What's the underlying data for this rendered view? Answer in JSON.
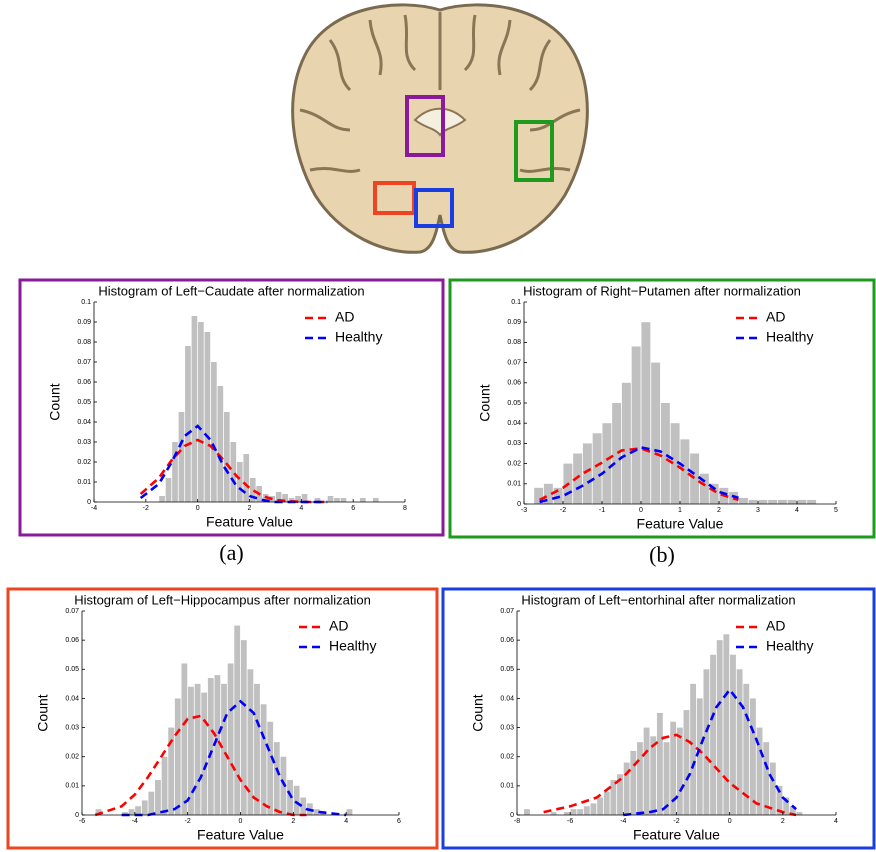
{
  "chart_data": [
    {
      "type": "histogram",
      "title": "Histogram of Left−Caudate after normalization",
      "xlabel": "Feature Value",
      "ylabel": "Count",
      "panel_label": "(a)",
      "frame_color": "#8b1a9a",
      "color": "#c0c0c0",
      "bins": [
        -2.0,
        -1.75,
        -1.5,
        -1.25,
        -1.0,
        -0.75,
        -0.5,
        -0.25,
        0.0,
        0.25,
        0.5,
        0.75,
        1.0,
        1.25,
        1.5,
        1.75,
        2.0,
        2.25,
        2.5,
        2.75,
        3.0,
        3.25,
        3.5,
        3.75,
        4.0,
        4.25,
        4.5,
        4.75,
        5.0,
        5.25,
        5.5,
        5.75,
        6.0,
        6.25,
        6.5,
        6.75,
        7.0
      ],
      "counts": [
        0,
        0,
        0.003,
        0.012,
        0.03,
        0.045,
        0.078,
        0.093,
        0.09,
        0.085,
        0.07,
        0.058,
        0.045,
        0.03,
        0.02,
        0.024,
        0.012,
        0.008,
        0.004,
        0.003,
        0.005,
        0.004,
        0.002,
        0.003,
        0.004,
        0,
        0.002,
        0,
        0.003,
        0.002,
        0.002,
        0,
        0,
        0.002,
        0,
        0.002
      ],
      "series": [
        {
          "name": "AD",
          "color": "#ff0000",
          "x": [
            -2.2,
            -1.5,
            -1,
            -0.5,
            0,
            0.5,
            1,
            1.5,
            2,
            2.5,
            3,
            4,
            5
          ],
          "values": [
            0.004,
            0.012,
            0.021,
            0.028,
            0.031,
            0.028,
            0.021,
            0.013,
            0.007,
            0.003,
            0.001,
            0,
            0
          ]
        },
        {
          "name": "Healthy",
          "color": "#0000ff",
          "x": [
            -2.2,
            -1.5,
            -1,
            -0.5,
            0,
            0.5,
            1,
            1.5,
            2,
            2.5,
            3,
            4,
            5
          ],
          "values": [
            0.002,
            0.009,
            0.02,
            0.033,
            0.038,
            0.031,
            0.018,
            0.008,
            0.003,
            0.001,
            0,
            0,
            0
          ]
        }
      ],
      "xlim": [
        -4,
        8
      ],
      "xticks": [
        -4,
        -2,
        0,
        2,
        4,
        6,
        8
      ],
      "ylim": [
        0,
        0.1
      ],
      "yticks": [
        0,
        0.01,
        0.02,
        0.03,
        0.04,
        0.05,
        0.06,
        0.07,
        0.08,
        0.09,
        0.1
      ],
      "legend": "upper right"
    },
    {
      "type": "histogram",
      "title": "Histogram of Right−Putamen after normalization",
      "xlabel": "Feature Value",
      "ylabel": "Count",
      "panel_label": "(b)",
      "frame_color": "#1e9a1e",
      "color": "#c0c0c0",
      "bins": [
        -2.75,
        -2.5,
        -2.25,
        -2.0,
        -1.75,
        -1.5,
        -1.25,
        -1.0,
        -0.75,
        -0.5,
        -0.25,
        0,
        0.25,
        0.5,
        0.75,
        1.0,
        1.25,
        1.5,
        1.75,
        2.0,
        2.25,
        2.5,
        2.75,
        3.0,
        3.25,
        3.5,
        3.75,
        4.0,
        4.25,
        4.5
      ],
      "counts": [
        0.008,
        0.01,
        0.008,
        0.02,
        0.025,
        0.03,
        0.035,
        0.04,
        0.05,
        0.06,
        0.078,
        0.09,
        0.07,
        0.05,
        0.04,
        0.032,
        0.025,
        0.015,
        0.01,
        0.008,
        0.006,
        0.003,
        0.002,
        0.002,
        0.002,
        0.002,
        0.002,
        0.002,
        0.002
      ],
      "series": [
        {
          "name": "AD",
          "color": "#ff0000",
          "x": [
            -2.6,
            -2,
            -1.5,
            -1,
            -0.5,
            0,
            0.5,
            1,
            1.5,
            2,
            2.5
          ],
          "values": [
            0.002,
            0.008,
            0.015,
            0.0205,
            0.0265,
            0.0275,
            0.024,
            0.018,
            0.011,
            0.005,
            0.002
          ]
        },
        {
          "name": "Healthy",
          "color": "#0000ff",
          "x": [
            -2.6,
            -2,
            -1.5,
            -1,
            -0.5,
            0,
            0.5,
            1,
            1.5,
            2,
            2.5
          ],
          "values": [
            0.001,
            0.004,
            0.009,
            0.015,
            0.023,
            0.028,
            0.026,
            0.02,
            0.013,
            0.006,
            0.003
          ]
        }
      ],
      "xlim": [
        -3,
        5
      ],
      "xticks": [
        -3,
        -2,
        -1,
        0,
        1,
        2,
        3,
        4,
        5
      ],
      "ylim": [
        0,
        0.1
      ],
      "yticks": [
        0,
        0.01,
        0.02,
        0.03,
        0.04,
        0.05,
        0.06,
        0.07,
        0.08,
        0.09,
        0.1
      ],
      "legend": "upper right"
    },
    {
      "type": "histogram",
      "title": "Histogram of Left−Hippocampus after normalization",
      "xlabel": "Feature Value",
      "ylabel": "Count",
      "frame_color": "#ee4422",
      "color": "#c0c0c0",
      "bins": [
        -5.5,
        -5.25,
        -5.0,
        -4.75,
        -4.5,
        -4.25,
        -4.0,
        -3.75,
        -3.5,
        -3.25,
        -3.0,
        -2.75,
        -2.5,
        -2.25,
        -2.0,
        -1.75,
        -1.5,
        -1.25,
        -1.0,
        -0.75,
        -0.5,
        -0.25,
        0.0,
        0.25,
        0.5,
        0.75,
        1.0,
        1.25,
        1.5,
        1.75,
        2.0,
        2.25,
        2.5,
        2.75,
        3.0,
        3.25,
        3.5,
        3.75,
        4.0,
        4.25
      ],
      "counts": [
        0.002,
        0,
        0,
        0,
        0.001,
        0.002,
        0.003,
        0.005,
        0.008,
        0.012,
        0.02,
        0.03,
        0.04,
        0.052,
        0.044,
        0.045,
        0.042,
        0.047,
        0.048,
        0.045,
        0.052,
        0.065,
        0.06,
        0.05,
        0.045,
        0.038,
        0.032,
        0.025,
        0.02,
        0.012,
        0.01,
        0.006,
        0.004,
        0.002,
        0.001,
        0,
        0,
        0,
        0.002
      ],
      "series": [
        {
          "name": "AD",
          "color": "#ff0000",
          "x": [
            -5.5,
            -4.5,
            -4,
            -3.5,
            -3,
            -2.5,
            -2,
            -1.5,
            -1,
            -0.5,
            0,
            0.5,
            1,
            1.5,
            2,
            2.5
          ],
          "values": [
            0,
            0.003,
            0.007,
            0.013,
            0.02,
            0.027,
            0.033,
            0.034,
            0.028,
            0.02,
            0.012,
            0.006,
            0.003,
            0.001,
            0,
            0
          ]
        },
        {
          "name": "Healthy",
          "color": "#0000ff",
          "x": [
            -4.5,
            -3.5,
            -3,
            -2.5,
            -2,
            -1.5,
            -1,
            -0.5,
            0,
            0.5,
            1,
            1.5,
            2,
            2.5,
            3,
            4
          ],
          "values": [
            0,
            0,
            0.001,
            0.002,
            0.005,
            0.013,
            0.024,
            0.035,
            0.039,
            0.035,
            0.024,
            0.013,
            0.005,
            0.002,
            0.001,
            0
          ]
        }
      ],
      "xlim": [
        -6,
        6
      ],
      "xticks": [
        -6,
        -4,
        -2,
        0,
        2,
        4,
        6
      ],
      "ylim": [
        0,
        0.07
      ],
      "yticks": [
        0,
        0.01,
        0.02,
        0.03,
        0.04,
        0.05,
        0.06,
        0.07
      ],
      "legend": "upper right"
    },
    {
      "type": "histogram",
      "title": "Histogram of Left−entorhinal after normalization",
      "xlabel": "Feature Value",
      "ylabel": "Count",
      "frame_color": "#1a3ee0",
      "color": "#c0c0c0",
      "bins": [
        -7.75,
        -7.5,
        -7.25,
        -7.0,
        -6.75,
        -6.5,
        -6.25,
        -6.0,
        -5.75,
        -5.5,
        -5.25,
        -5.0,
        -4.75,
        -4.5,
        -4.25,
        -4.0,
        -3.75,
        -3.5,
        -3.25,
        -3.0,
        -2.75,
        -2.5,
        -2.25,
        -2.0,
        -1.75,
        -1.5,
        -1.25,
        -1.0,
        -0.75,
        -0.5,
        -0.25,
        0.0,
        0.25,
        0.5,
        0.75,
        1.0,
        1.25,
        1.5,
        1.75,
        2.0,
        2.25,
        2.5,
        2.75
      ],
      "counts": [
        0.002,
        0,
        0,
        0,
        0.001,
        0,
        0.001,
        0.002,
        0.002,
        0.003,
        0.004,
        0.006,
        0.008,
        0.012,
        0.014,
        0.018,
        0.022,
        0.025,
        0.03,
        0.027,
        0.035,
        0.025,
        0.032,
        0.03,
        0.036,
        0.045,
        0.04,
        0.05,
        0.055,
        0.06,
        0.062,
        0.055,
        0.05,
        0.045,
        0.04,
        0.03,
        0.025,
        0.018,
        0.01,
        0.006,
        0.003,
        0.001
      ],
      "series": [
        {
          "name": "AD",
          "color": "#ff0000",
          "x": [
            -7,
            -6,
            -5,
            -4,
            -3,
            -2.5,
            -2,
            -1.5,
            -1,
            0,
            1,
            2,
            2.5
          ],
          "values": [
            0.001,
            0.003,
            0.006,
            0.013,
            0.023,
            0.0265,
            0.0275,
            0.025,
            0.021,
            0.011,
            0.004,
            0.001,
            0
          ]
        },
        {
          "name": "Healthy",
          "color": "#0000ff",
          "x": [
            -4,
            -3,
            -2.5,
            -2,
            -1.5,
            -1,
            -0.5,
            0,
            0.5,
            1,
            1.5,
            2,
            2.5
          ],
          "values": [
            0,
            0.001,
            0.002,
            0.006,
            0.014,
            0.026,
            0.037,
            0.043,
            0.037,
            0.026,
            0.014,
            0.006,
            0.002
          ]
        }
      ],
      "xlim": [
        -8,
        4
      ],
      "xticks": [
        -8,
        -6,
        -4,
        -2,
        0,
        2,
        4
      ],
      "ylim": [
        0,
        0.07
      ],
      "yticks": [
        0,
        0.01,
        0.02,
        0.03,
        0.04,
        0.05,
        0.06,
        0.07
      ],
      "legend": "upper right"
    }
  ]
}
